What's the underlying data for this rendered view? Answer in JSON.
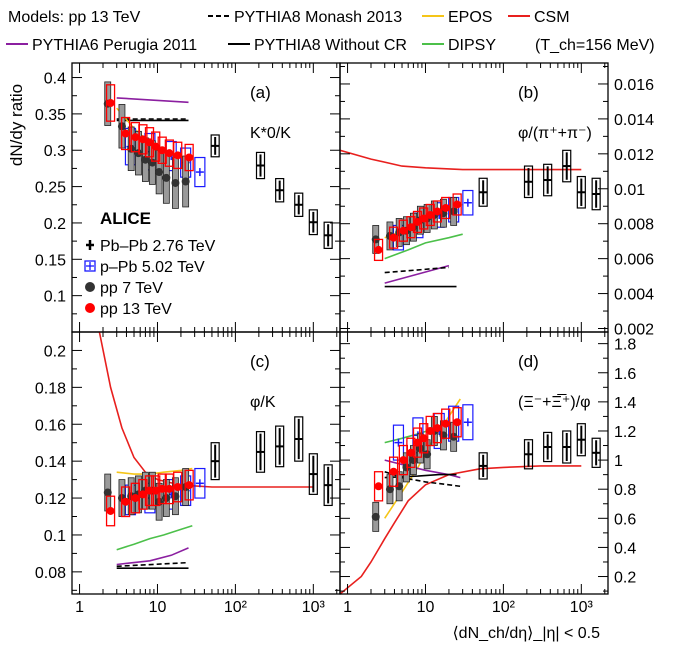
{
  "legend": {
    "items": [
      {
        "label": "Models: pp 13 TeV",
        "style": "none",
        "color": "#000000"
      },
      {
        "label": "PYTHIA8 Monash 2013",
        "style": "dashed",
        "color": "#000000"
      },
      {
        "label": "EPOS",
        "style": "solid",
        "color": "#f5c518"
      },
      {
        "label": "CSM",
        "style": "solid",
        "color": "#e8201e"
      },
      {
        "label": "PYTHIA6 Perugia 2011",
        "style": "solid",
        "color": "#8b1fa0"
      },
      {
        "label": "PYTHIA8 Without CR",
        "style": "solid",
        "color": "#000000"
      },
      {
        "label": "DIPSY",
        "style": "solid",
        "color": "#4cc04a"
      },
      {
        "label": "(T_ch=156 MeV)",
        "style": "none",
        "color": "#000000"
      }
    ]
  },
  "data_legend": {
    "title": "ALICE",
    "items": [
      {
        "label": "Pb–Pb 2.76 TeV",
        "marker": "cross",
        "color": "#000000"
      },
      {
        "label": "p–Pb 5.02 TeV",
        "marker": "open-cross",
        "color": "#1a1aff"
      },
      {
        "label": "pp 7 TeV",
        "marker": "circle",
        "color": "#333333"
      },
      {
        "label": "pp 13 TeV",
        "marker": "circle",
        "color": "#ff0000"
      }
    ]
  },
  "axes": {
    "xlabel": "⟨dN_ch/dη⟩_|η| < 0.5",
    "ylabel": "dN/dy ratio",
    "xticks": [
      "1",
      "10",
      "10²",
      "10³"
    ]
  },
  "colors": {
    "pbpb": "#000000",
    "ppb": "#1a1aff",
    "pp7": "#333333",
    "pp13": "#ff0000",
    "epos": "#f5c518",
    "csm": "#e8201e",
    "perugia": "#8b1fa0",
    "dipsy": "#4cc04a",
    "monash": "#000000",
    "nocr": "#000000"
  },
  "chart_data": [
    {
      "type": "scatter",
      "panel": "(a)",
      "ratio_label": "K*0/K",
      "xscale": "log",
      "xlim": [
        0.8,
        2200
      ],
      "ylim": [
        0.05,
        0.42
      ],
      "yticks": [
        0.1,
        0.15,
        0.2,
        0.25,
        0.3,
        0.35,
        0.4
      ],
      "yaxis_side": "left",
      "series": [
        {
          "name": "Pb–Pb 2.76 TeV",
          "x": [
            55,
            210,
            370,
            650,
            1000,
            1550
          ],
          "y": [
            0.306,
            0.279,
            0.245,
            0.225,
            0.201,
            0.183
          ],
          "yerr": [
            0.015,
            0.018,
            0.016,
            0.016,
            0.017,
            0.018
          ]
        },
        {
          "name": "p–Pb 5.02 TeV",
          "x": [
            4.5,
            8,
            15,
            23,
            35
          ],
          "y": [
            0.305,
            0.298,
            0.292,
            0.283,
            0.27
          ],
          "yerr": [
            0.025,
            0.025,
            0.02,
            0.02,
            0.02
          ]
        },
        {
          "name": "pp 7 TeV",
          "x": [
            2.3,
            3.5,
            4.6,
            5.7,
            7,
            8.6,
            10.5,
            13,
            17,
            23
          ],
          "y": [
            0.364,
            0.333,
            0.302,
            0.296,
            0.287,
            0.283,
            0.27,
            0.262,
            0.255,
            0.257
          ],
          "yerr": [
            0.03,
            0.03,
            0.03,
            0.03,
            0.03,
            0.03,
            0.03,
            0.035,
            0.035,
            0.035
          ]
        },
        {
          "name": "pp 13 TeV",
          "x": [
            2.5,
            3.9,
            5.2,
            6.5,
            7.9,
            9.5,
            11.5,
            14.2,
            18.2,
            25.5
          ],
          "y": [
            0.365,
            0.323,
            0.318,
            0.315,
            0.311,
            0.305,
            0.3,
            0.296,
            0.293,
            0.29
          ],
          "yerr": [
            0.025,
            0.022,
            0.02,
            0.02,
            0.02,
            0.02,
            0.018,
            0.018,
            0.018,
            0.018
          ]
        }
      ],
      "models": [
        {
          "name": "PYTHIA6 Perugia 2011",
          "x": [
            3,
            25
          ],
          "y": [
            0.372,
            0.366
          ]
        },
        {
          "name": "PYTHIA8 Monash 2013",
          "x": [
            3,
            25
          ],
          "y": [
            0.343,
            0.343
          ]
        },
        {
          "name": "PYTHIA8 Without CR",
          "x": [
            3,
            25
          ],
          "y": [
            0.341,
            0.341
          ]
        },
        {
          "name": "EPOS",
          "x": [
            3,
            5,
            8,
            12,
            18,
            25
          ],
          "y": [
            0.358,
            0.33,
            0.31,
            0.3,
            0.292,
            0.289
          ]
        }
      ]
    },
    {
      "type": "scatter",
      "panel": "(b)",
      "ratio_label": "φ/(π⁺+π⁻)",
      "xscale": "log",
      "xlim": [
        0.8,
        2200
      ],
      "ylim": [
        0.0018,
        0.0172
      ],
      "yticks": [
        0.002,
        0.004,
        0.006,
        0.008,
        0.01,
        0.012,
        0.014,
        0.016
      ],
      "yaxis_side": "right",
      "series": [
        {
          "name": "Pb–Pb 2.76 TeV",
          "x": [
            55,
            210,
            370,
            650,
            1000,
            1550
          ],
          "y": [
            0.0098,
            0.0104,
            0.0105,
            0.0113,
            0.0098,
            0.0097
          ],
          "yerr": [
            0.0008,
            0.0009,
            0.0009,
            0.0009,
            0.0009,
            0.0009
          ]
        },
        {
          "name": "p–Pb 5.02 TeV",
          "x": [
            4.5,
            8,
            15,
            23,
            35
          ],
          "y": [
            0.0072,
            0.0079,
            0.0085,
            0.0088,
            0.0092
          ],
          "yerr": [
            0.0007,
            0.0007,
            0.0007,
            0.0007,
            0.0007
          ]
        },
        {
          "name": "pp 7 TeV",
          "x": [
            2.3,
            3.5,
            4.6,
            5.7,
            7,
            8.6,
            10.5,
            13,
            17,
            23
          ],
          "y": [
            0.0071,
            0.0073,
            0.0075,
            0.0076,
            0.0078,
            0.0082,
            0.0083,
            0.0085,
            0.0086,
            0.0087
          ],
          "yerr": [
            0.0008,
            0.0008,
            0.0008,
            0.0008,
            0.0008,
            0.0008,
            0.0008,
            0.0008,
            0.0008,
            0.0008
          ]
        },
        {
          "name": "pp 13 TeV",
          "x": [
            2.5,
            3.9,
            5.2,
            6.5,
            7.9,
            9.5,
            11.5,
            14.2,
            18.2,
            25.5
          ],
          "y": [
            0.0065,
            0.0072,
            0.0076,
            0.0078,
            0.0081,
            0.0083,
            0.0085,
            0.0087,
            0.0089,
            0.0091
          ],
          "yerr": [
            0.0006,
            0.0006,
            0.0006,
            0.0006,
            0.0006,
            0.0006,
            0.0006,
            0.0006,
            0.0006,
            0.0006
          ]
        }
      ],
      "models": [
        {
          "name": "CSM",
          "x": [
            0.8,
            2,
            5,
            10,
            30,
            100,
            1000
          ],
          "y": [
            0.0122,
            0.0117,
            0.0113,
            0.0112,
            0.0111,
            0.0111,
            0.0111
          ]
        },
        {
          "name": "PYTHIA6 Perugia 2011",
          "x": [
            3,
            20
          ],
          "y": [
            0.0046,
            0.0056
          ]
        },
        {
          "name": "PYTHIA8 Monash 2013",
          "x": [
            3,
            20
          ],
          "y": [
            0.0052,
            0.0055
          ]
        },
        {
          "name": "PYTHIA8 Without CR",
          "x": [
            3,
            25
          ],
          "y": [
            0.0044,
            0.0044
          ]
        },
        {
          "name": "DIPSY",
          "x": [
            3,
            6,
            10,
            20,
            30
          ],
          "y": [
            0.006,
            0.0065,
            0.0069,
            0.0072,
            0.0074
          ]
        },
        {
          "name": "EPOS",
          "x": [
            3,
            6,
            10,
            20,
            30
          ],
          "y": [
            0.0072,
            0.0077,
            0.0082,
            0.0088,
            0.0091
          ]
        }
      ]
    },
    {
      "type": "scatter",
      "panel": "(c)",
      "ratio_label": "φ/K",
      "xscale": "log",
      "xlim": [
        0.8,
        2200
      ],
      "ylim": [
        0.068,
        0.21
      ],
      "yticks": [
        0.08,
        0.1,
        0.12,
        0.14,
        0.16,
        0.18,
        0.2
      ],
      "yaxis_side": "left",
      "series": [
        {
          "name": "Pb–Pb 2.76 TeV",
          "x": [
            55,
            210,
            370,
            650,
            1000,
            1550
          ],
          "y": [
            0.14,
            0.145,
            0.148,
            0.152,
            0.133,
            0.127
          ],
          "yerr": [
            0.01,
            0.011,
            0.011,
            0.012,
            0.011,
            0.011
          ]
        },
        {
          "name": "p–Pb 5.02 TeV",
          "x": [
            4.5,
            8,
            15,
            23,
            35
          ],
          "y": [
            0.119,
            0.12,
            0.122,
            0.124,
            0.128
          ],
          "yerr": [
            0.008,
            0.008,
            0.008,
            0.008,
            0.008
          ]
        },
        {
          "name": "pp 7 TeV",
          "x": [
            2.3,
            3.5,
            4.6,
            5.7,
            7,
            8.6,
            10.5,
            13,
            17,
            23
          ],
          "y": [
            0.123,
            0.12,
            0.121,
            0.122,
            0.124,
            0.124,
            0.118,
            0.12,
            0.121,
            0.126
          ],
          "yerr": [
            0.01,
            0.01,
            0.01,
            0.01,
            0.01,
            0.01,
            0.01,
            0.01,
            0.01,
            0.01
          ]
        },
        {
          "name": "pp 13 TeV",
          "x": [
            2.5,
            3.9,
            5.2,
            6.5,
            7.9,
            9.5,
            11.5,
            14.2,
            18.2,
            25.5
          ],
          "y": [
            0.113,
            0.118,
            0.12,
            0.122,
            0.124,
            0.124,
            0.125,
            0.125,
            0.126,
            0.127
          ],
          "yerr": [
            0.008,
            0.008,
            0.008,
            0.008,
            0.008,
            0.008,
            0.008,
            0.008,
            0.008,
            0.008
          ]
        }
      ],
      "models": [
        {
          "name": "CSM",
          "x": [
            1.8,
            2.5,
            3.5,
            5,
            7,
            10,
            20,
            50,
            100,
            400,
            1000
          ],
          "y": [
            0.21,
            0.18,
            0.158,
            0.142,
            0.134,
            0.13,
            0.127,
            0.126,
            0.126,
            0.126,
            0.126
          ]
        },
        {
          "name": "EPOS",
          "x": [
            3,
            5,
            8,
            12,
            20,
            28
          ],
          "y": [
            0.134,
            0.133,
            0.133,
            0.134,
            0.135,
            0.136
          ]
        },
        {
          "name": "DIPSY",
          "x": [
            3,
            5,
            8,
            12,
            20,
            28
          ],
          "y": [
            0.092,
            0.095,
            0.098,
            0.1,
            0.103,
            0.105
          ]
        },
        {
          "name": "PYTHIA6 Perugia 2011",
          "x": [
            3,
            8,
            15,
            25
          ],
          "y": [
            0.084,
            0.086,
            0.089,
            0.093
          ]
        },
        {
          "name": "PYTHIA8 Monash 2013",
          "x": [
            3,
            25
          ],
          "y": [
            0.083,
            0.085
          ]
        },
        {
          "name": "PYTHIA8 Without CR",
          "x": [
            3,
            25
          ],
          "y": [
            0.082,
            0.082
          ]
        }
      ]
    },
    {
      "type": "scatter",
      "panel": "(d)",
      "ratio_label": "(Ξ⁻+Ξ̅⁺)/φ",
      "xscale": "log",
      "xlim": [
        0.8,
        2200
      ],
      "ylim": [
        0.08,
        1.88
      ],
      "yticks": [
        0.2,
        0.4,
        0.6,
        0.8,
        1.0,
        1.2,
        1.4,
        1.6,
        1.8
      ],
      "yaxis_side": "right",
      "series": [
        {
          "name": "Pb–Pb 2.76 TeV",
          "x": [
            55,
            210,
            370,
            650,
            1000,
            1550
          ],
          "y": [
            0.96,
            1.04,
            1.09,
            1.09,
            1.14,
            1.05
          ],
          "yerr": [
            0.09,
            0.1,
            0.1,
            0.11,
            0.11,
            0.1
          ]
        },
        {
          "name": "p–Pb 5.02 TeV",
          "x": [
            4.5,
            8,
            15,
            23,
            35
          ],
          "y": [
            1.12,
            1.17,
            1.2,
            1.25,
            1.26
          ],
          "yerr": [
            0.12,
            0.12,
            0.12,
            0.12,
            0.12
          ]
        },
        {
          "name": "pp 7 TeV",
          "x": [
            2.3,
            3.5,
            4.6,
            5.7,
            7,
            8.6,
            10.5,
            13,
            17,
            23
          ],
          "y": [
            0.61,
            0.8,
            0.82,
            0.95,
            1.0,
            1.08,
            1.04,
            1.2,
            1.17,
            1.16
          ],
          "yerr": [
            0.1,
            0.1,
            0.1,
            0.1,
            0.1,
            0.1,
            0.1,
            0.1,
            0.1,
            0.1
          ]
        },
        {
          "name": "pp 13 TeV",
          "x": [
            2.5,
            3.9,
            5.2,
            6.5,
            7.9,
            9.5,
            11.5,
            14.2,
            18.2,
            25.5
          ],
          "y": [
            0.82,
            0.92,
            1.0,
            1.05,
            1.12,
            1.15,
            1.2,
            1.22,
            1.25,
            1.26
          ],
          "yerr": [
            0.1,
            0.1,
            0.1,
            0.1,
            0.1,
            0.1,
            0.1,
            0.1,
            0.1,
            0.1
          ]
        }
      ],
      "models": [
        {
          "name": "CSM",
          "x": [
            0.8,
            1.5,
            2,
            3,
            4,
            6,
            10,
            20,
            50,
            100,
            300,
            1000
          ],
          "y": [
            0.08,
            0.2,
            0.3,
            0.46,
            0.57,
            0.72,
            0.83,
            0.9,
            0.94,
            0.95,
            0.96,
            0.96
          ]
        },
        {
          "name": "EPOS",
          "x": [
            3,
            5,
            8,
            12,
            20,
            28
          ],
          "y": [
            0.6,
            0.78,
            0.95,
            1.12,
            1.3,
            1.42
          ]
        },
        {
          "name": "DIPSY",
          "x": [
            3,
            5,
            8,
            12,
            20,
            28
          ],
          "y": [
            1.12,
            1.15,
            1.18,
            1.21,
            1.24,
            1.27
          ]
        },
        {
          "name": "PYTHIA6 Perugia 2011",
          "x": [
            3,
            5,
            10,
            20,
            28
          ],
          "y": [
            1.0,
            0.97,
            0.93,
            0.9,
            0.88
          ]
        },
        {
          "name": "PYTHIA8 Monash 2013",
          "x": [
            3,
            5,
            10,
            20,
            28
          ],
          "y": [
            0.92,
            0.88,
            0.85,
            0.83,
            0.82
          ]
        },
        {
          "name": "PYTHIA8 Without CR",
          "x": [
            3,
            8,
            15,
            25
          ],
          "y": [
            0.88,
            0.89,
            0.9,
            0.9
          ]
        }
      ]
    }
  ]
}
